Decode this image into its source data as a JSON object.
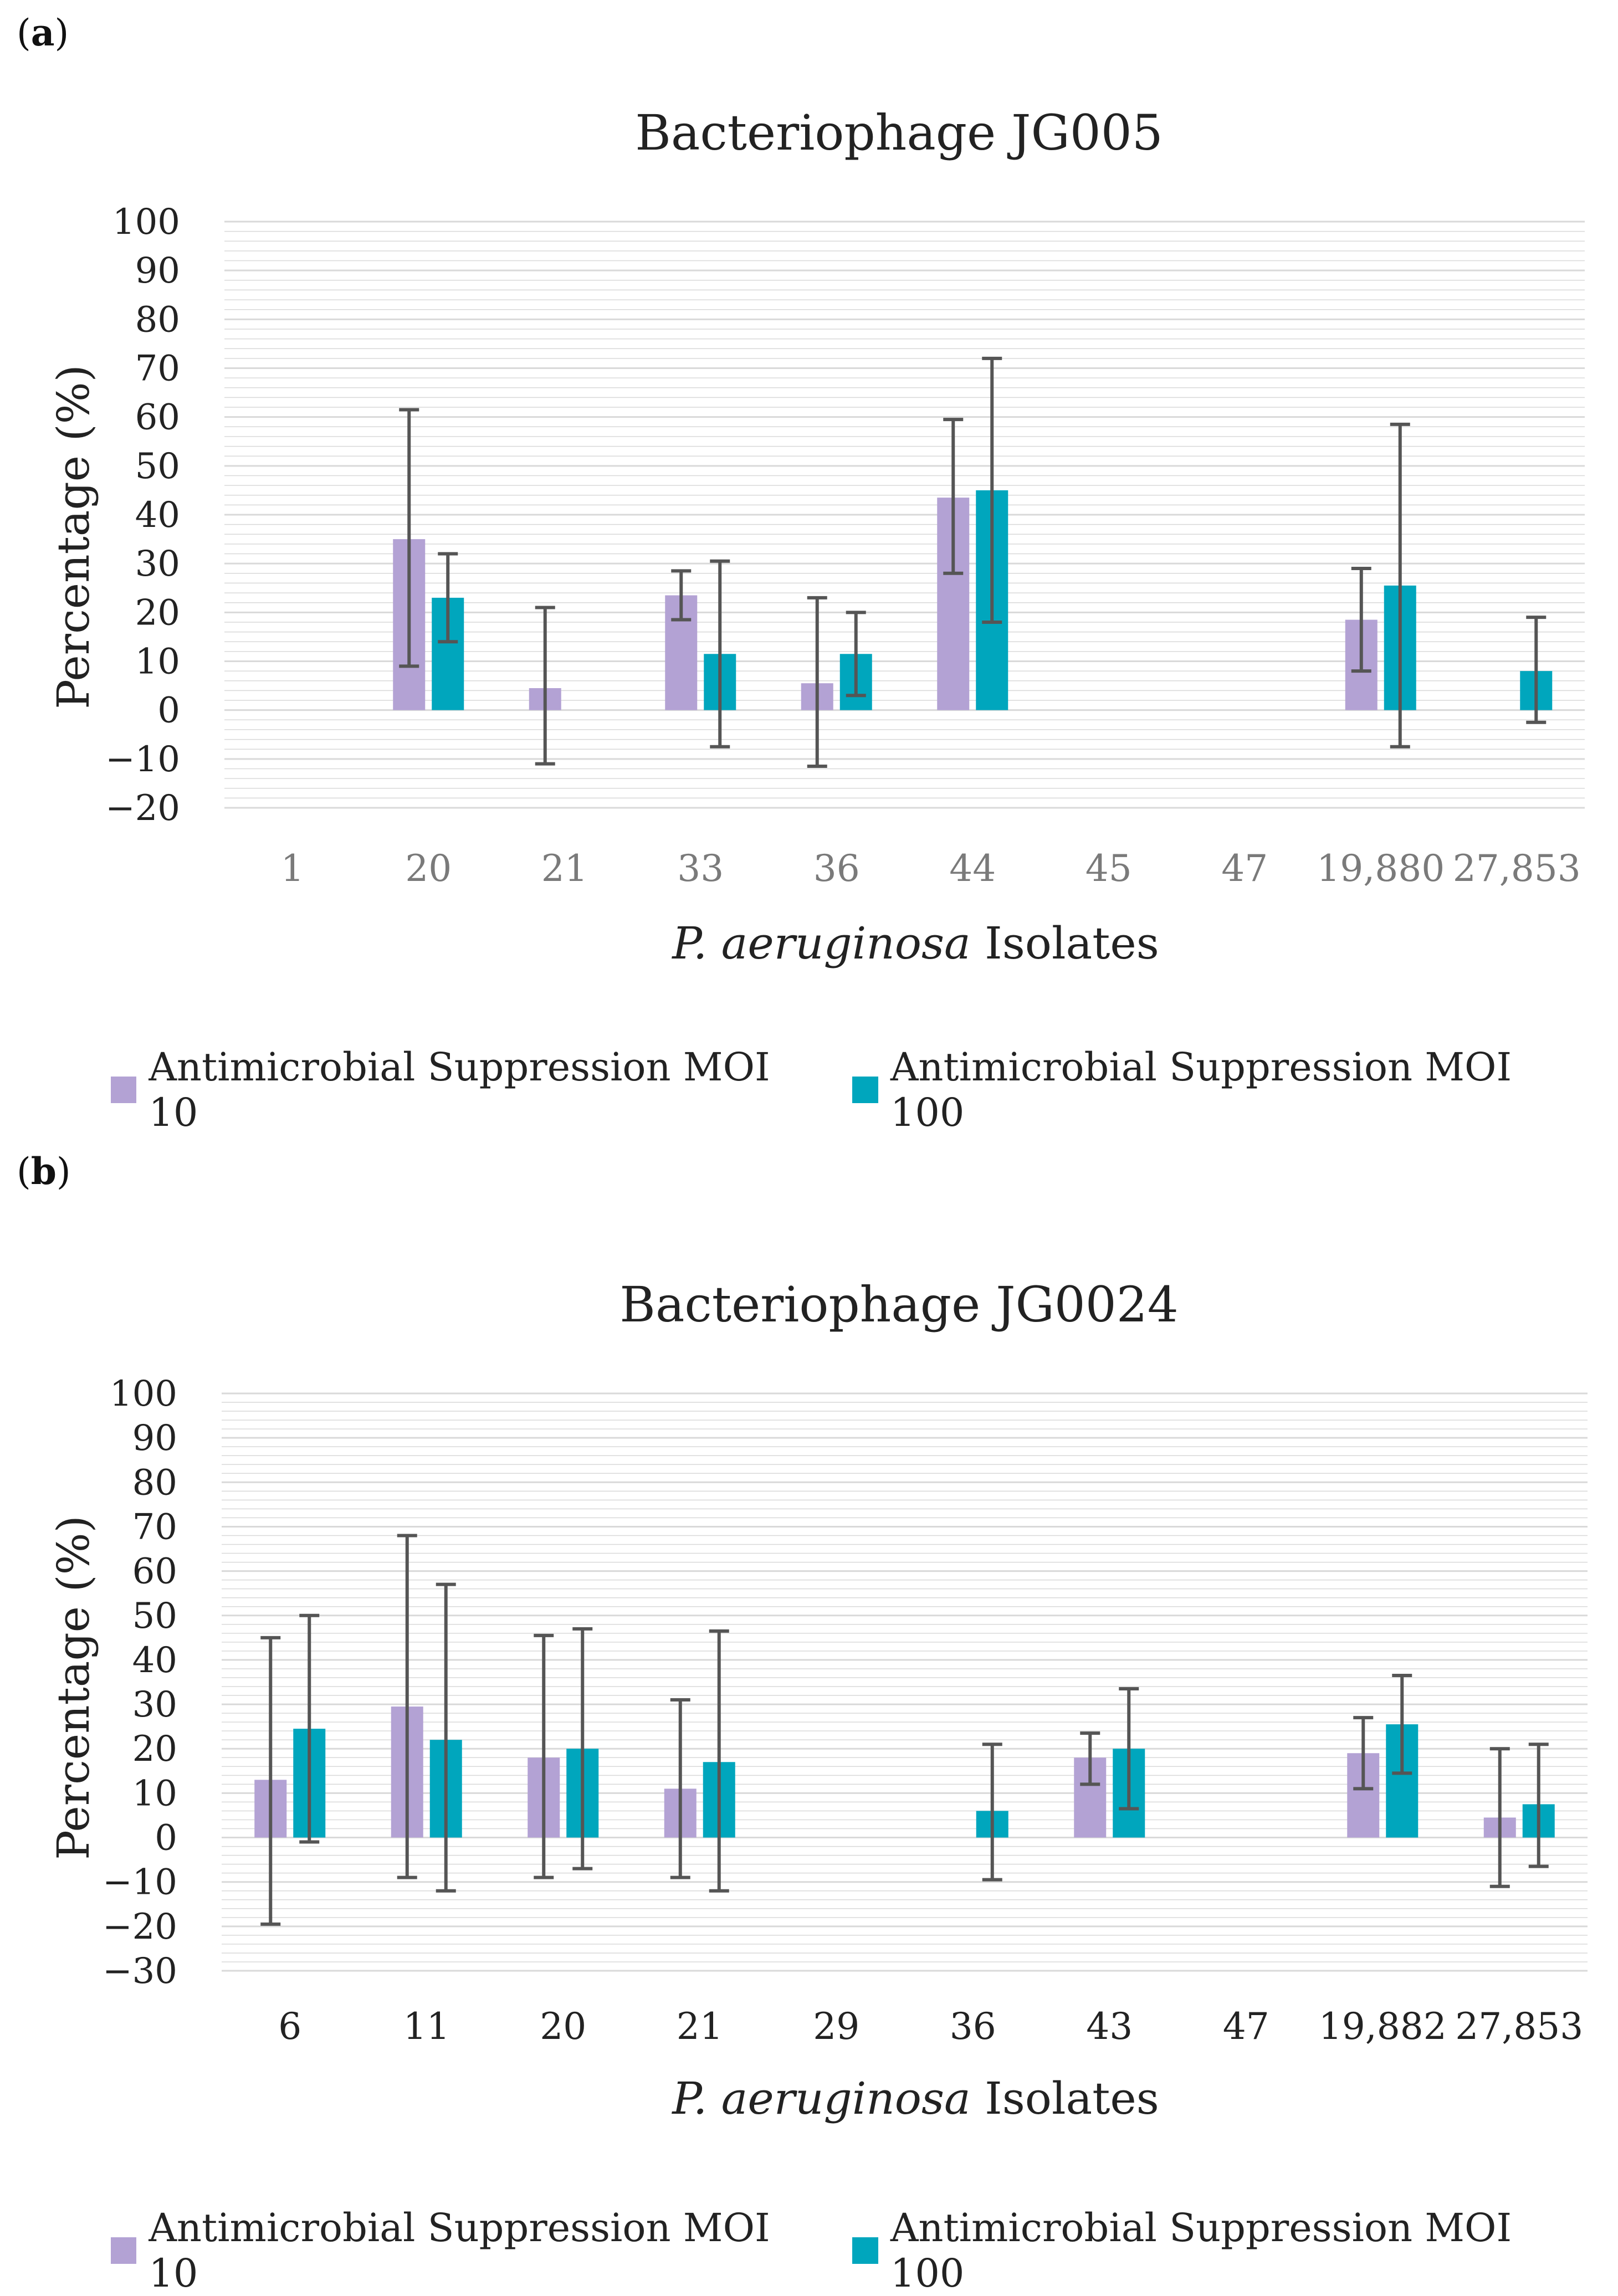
{
  "panels": [
    {
      "label_open": "(",
      "label_letter": "a",
      "label_close": ")"
    },
    {
      "label_open": "(",
      "label_letter": "b",
      "label_close": ")"
    }
  ],
  "legend": {
    "moi10": "Antimicrobial Suppression MOI 10",
    "moi100": "Antimicrobial Suppression MOI 100"
  },
  "colors": {
    "moi10": "#b3a2d4",
    "moi100": "#00a6bd",
    "error": "#555555",
    "grid": "#d9d9d9"
  },
  "chart_data": [
    {
      "type": "bar",
      "title": "Bacteriophage JG005",
      "xlabel_italic": "P. aeruginosa",
      "xlabel_rest": " Isolates",
      "ylabel": "Percentage (%)",
      "ylim": [
        -20,
        100
      ],
      "yticks": [
        "100",
        "90",
        "80",
        "70",
        "60",
        "50",
        "40",
        "30",
        "20",
        "10",
        "0",
        "−10",
        "−20"
      ],
      "categories": [
        "1",
        "20",
        "21",
        "33",
        "36",
        "44",
        "45",
        "47",
        "19,880",
        "27,853"
      ],
      "series": [
        {
          "name": "Antimicrobial Suppression MOI 10",
          "values": [
            null,
            35,
            4.5,
            23.5,
            5.5,
            43.5,
            null,
            null,
            18.5,
            null
          ],
          "err_low": [
            null,
            9,
            -11,
            18.5,
            -11.5,
            28,
            null,
            null,
            8,
            null
          ],
          "err_high": [
            null,
            61.5,
            21,
            28.5,
            23,
            59.5,
            null,
            null,
            29,
            null
          ]
        },
        {
          "name": "Antimicrobial Suppression MOI 100",
          "values": [
            null,
            23,
            null,
            11.5,
            11.5,
            45,
            null,
            null,
            25.5,
            8
          ],
          "err_low": [
            null,
            14,
            null,
            -7.5,
            3,
            18,
            null,
            null,
            -7.5,
            -2.5
          ],
          "err_high": [
            null,
            32,
            null,
            30.5,
            20,
            72,
            null,
            null,
            58.5,
            19
          ]
        }
      ]
    },
    {
      "type": "bar",
      "title": "Bacteriophage JG0024",
      "xlabel_italic": "P. aeruginosa",
      "xlabel_rest": " Isolates",
      "ylabel": "Percentage (%)",
      "ylim": [
        -30,
        100
      ],
      "yticks": [
        "100",
        "90",
        "80",
        "70",
        "60",
        "50",
        "40",
        "30",
        "20",
        "10",
        "0",
        "−10",
        "−20",
        "−30"
      ],
      "categories": [
        "6",
        "11",
        "20",
        "21",
        "29",
        "36",
        "43",
        "47",
        "19,882",
        "27,853"
      ],
      "series": [
        {
          "name": "Antimicrobial Suppression MOI 10",
          "values": [
            13,
            29.5,
            18,
            11,
            null,
            null,
            18,
            null,
            19,
            4.5
          ],
          "err_low": [
            -19.5,
            -9,
            -9,
            -9,
            null,
            null,
            12,
            null,
            11,
            -11
          ],
          "err_high": [
            45,
            68,
            45.5,
            31,
            null,
            null,
            23.5,
            null,
            27,
            20
          ]
        },
        {
          "name": "Antimicrobial Suppression MOI 100",
          "values": [
            24.5,
            22,
            20,
            17,
            null,
            6,
            20,
            null,
            25.5,
            7.5
          ],
          "err_low": [
            -1,
            -12,
            -7,
            -12,
            null,
            -9.5,
            6.5,
            null,
            14.5,
            -6.5
          ],
          "err_high": [
            50,
            57,
            47,
            46.5,
            null,
            21,
            33.5,
            null,
            36.5,
            21
          ]
        }
      ]
    }
  ]
}
